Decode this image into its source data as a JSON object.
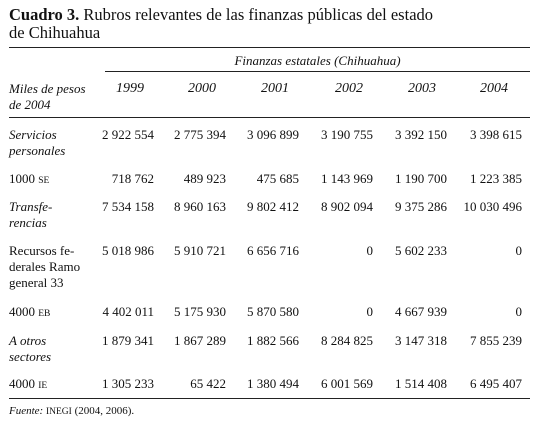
{
  "title": {
    "label": "Cuadro 3.",
    "lines": [
      "Rubros relevantes de las finanzas públicas del estado",
      "de Chihuahua"
    ]
  },
  "table": {
    "spanner": "Finanzas estatales (Chihuahua)",
    "stub_header": "Miles de pesos\nde 2004",
    "columns": [
      "1999",
      "2000",
      "2001",
      "2002",
      "2003",
      "2004"
    ],
    "rows": [
      {
        "label": "Servicios\npersonales",
        "italic": true,
        "values": [
          "2 922 554",
          "2 775 394",
          "3 096 899",
          "3 190 755",
          "3 392 150",
          "3 398 615"
        ]
      },
      {
        "label": "1000",
        "code": "SE",
        "italic": false,
        "values": [
          "718 762",
          "489 923",
          "475 685",
          "1 143 969",
          "1 190 700",
          "1 223 385"
        ]
      },
      {
        "label": "Transfe-\nrencias",
        "italic": true,
        "values": [
          "7 534 158",
          "8 960 163",
          "9 802 412",
          "8 902 094",
          "9 375 286",
          "10 030 496"
        ]
      },
      {
        "label": "Recursos fe-\nderales Ramo\ngeneral 33",
        "italic": false,
        "values": [
          "5 018 986",
          "5 910 721",
          "6 656 716",
          "0",
          "5 602 233",
          "0"
        ]
      },
      {
        "label": "4000",
        "code": "EB",
        "italic": false,
        "values": [
          "4 402 011",
          "5 175 930",
          "5 870 580",
          "0",
          "4 667 939",
          "0"
        ]
      },
      {
        "label": "A otros\nsectores",
        "italic": true,
        "values": [
          "1 879 341",
          "1 867 289",
          "1 882 566",
          "8 284 825",
          "3 147 318",
          "7 855 239"
        ]
      },
      {
        "label": "4000",
        "code": "IE",
        "italic": false,
        "values": [
          "1 305 233",
          "65 422",
          "1 380 494",
          "6 001 569",
          "1 514 408",
          "6 495 407"
        ]
      }
    ]
  },
  "footnote": {
    "label": "Fuente:",
    "source": "INEGI",
    "text": "(2004, 2006)."
  }
}
